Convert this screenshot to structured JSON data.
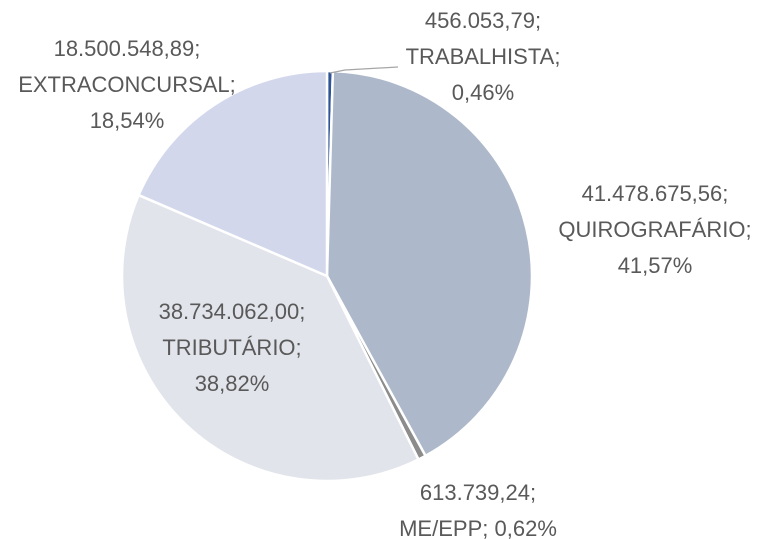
{
  "chart_data": {
    "type": "pie",
    "categories": [
      "TRABALHISTA",
      "QUIROGRAFÁRIO",
      "ME/EPP",
      "TRIBUTÁRIO",
      "EXTRACONCURSAL"
    ],
    "values": [
      456053.79,
      41478675.56,
      613739.24,
      38734062.0,
      18500548.89
    ],
    "value_labels": [
      "456.053,79",
      "41.478.675,56",
      "613.739,24",
      "38.734.062,00",
      "18.500.548,89"
    ],
    "percents": [
      0.46,
      41.57,
      0.62,
      38.82,
      18.54
    ],
    "percent_labels": [
      "0,46%",
      "41,57%",
      "0,62%",
      "38,82%",
      "18,54%"
    ],
    "label_separator": ";",
    "colors": [
      "#2f5597",
      "#adb9ca",
      "#8c8c8c",
      "#e1e4eb",
      "#d2d7ec"
    ]
  }
}
